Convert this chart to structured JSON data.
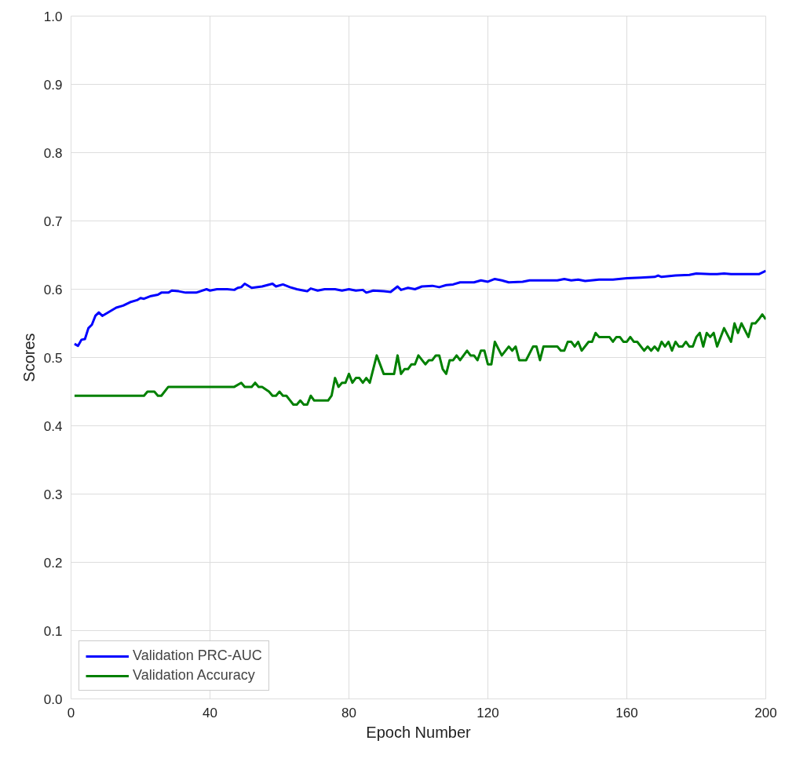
{
  "chart_data": {
    "type": "line",
    "xlabel": "Epoch Number",
    "ylabel": "Scores",
    "xlim": [
      0,
      200
    ],
    "ylim": [
      0,
      1.0
    ],
    "xticks": [
      0,
      40,
      80,
      120,
      160,
      200
    ],
    "yticks": [
      {
        "value": 0,
        "label": "0.0"
      },
      0.1,
      0.2,
      0.3,
      0.4,
      0.5,
      0.6,
      0.7,
      0.8,
      0.9,
      {
        "value": 1,
        "label": "1.0"
      }
    ],
    "grid": true,
    "legend": "bottom left",
    "line_style": "solid",
    "series": [
      {
        "name": "Validation PRC-AUC",
        "color": "#0000ff",
        "x": [
          1,
          2,
          3,
          4,
          5,
          6,
          7,
          8,
          9,
          11,
          13,
          15,
          17,
          19,
          20,
          21,
          23,
          25,
          26,
          28,
          29,
          31,
          33,
          36,
          39,
          40,
          42,
          45,
          47,
          48,
          49,
          50,
          52,
          55,
          58,
          59,
          61,
          63,
          65,
          67,
          68,
          69,
          71,
          73,
          76,
          78,
          80,
          82,
          84,
          85,
          87,
          90,
          92,
          94,
          95,
          97,
          99,
          101,
          104,
          106,
          108,
          110,
          112,
          116,
          118,
          120,
          122,
          124,
          126,
          130,
          132,
          136,
          140,
          142,
          144,
          146,
          148,
          152,
          156,
          160,
          164,
          168,
          169,
          170,
          174,
          178,
          180,
          184,
          186,
          188,
          190,
          192,
          196,
          198,
          200
        ],
        "values": [
          0.52,
          0.517,
          0.526,
          0.527,
          0.543,
          0.548,
          0.561,
          0.566,
          0.561,
          0.567,
          0.573,
          0.576,
          0.581,
          0.584,
          0.587,
          0.586,
          0.59,
          0.592,
          0.595,
          0.595,
          0.598,
          0.597,
          0.595,
          0.595,
          0.6,
          0.598,
          0.6,
          0.6,
          0.599,
          0.602,
          0.603,
          0.608,
          0.602,
          0.604,
          0.608,
          0.604,
          0.607,
          0.603,
          0.6,
          0.598,
          0.597,
          0.601,
          0.598,
          0.6,
          0.6,
          0.598,
          0.6,
          0.598,
          0.599,
          0.595,
          0.598,
          0.597,
          0.596,
          0.604,
          0.599,
          0.602,
          0.6,
          0.604,
          0.605,
          0.603,
          0.606,
          0.607,
          0.61,
          0.61,
          0.613,
          0.611,
          0.615,
          0.613,
          0.61,
          0.611,
          0.613,
          0.613,
          0.613,
          0.615,
          0.613,
          0.614,
          0.612,
          0.614,
          0.614,
          0.616,
          0.617,
          0.618,
          0.62,
          0.618,
          0.62,
          0.621,
          0.623,
          0.622,
          0.622,
          0.623,
          0.622,
          0.622,
          0.622,
          0.622,
          0.627
        ]
      },
      {
        "name": "Validation Accuracy",
        "color": "#008000",
        "x": [
          1,
          21,
          22,
          24,
          25,
          26,
          28,
          47,
          49,
          50,
          52,
          53,
          54,
          55,
          57,
          58,
          59,
          60,
          61,
          62,
          64,
          65,
          66,
          67,
          68,
          69,
          70,
          74,
          75,
          76,
          77,
          78,
          79,
          80,
          81,
          82,
          83,
          84,
          85,
          86,
          88,
          90,
          92,
          93,
          94,
          95,
          96,
          97,
          98,
          99,
          100,
          102,
          103,
          104,
          105,
          106,
          107,
          108,
          109,
          110,
          111,
          112,
          114,
          115,
          116,
          117,
          118,
          119,
          120,
          121,
          122,
          124,
          126,
          127,
          128,
          129,
          131,
          133,
          134,
          135,
          136,
          140,
          141,
          142,
          143,
          144,
          145,
          146,
          147,
          149,
          150,
          151,
          152,
          155,
          156,
          157,
          158,
          159,
          160,
          161,
          162,
          163,
          165,
          166,
          167,
          168,
          169,
          170,
          171,
          172,
          173,
          174,
          175,
          176,
          177,
          178,
          179,
          180,
          181,
          182,
          183,
          184,
          185,
          186,
          188,
          190,
          191,
          192,
          193,
          195,
          196,
          197,
          198,
          199,
          200
        ],
        "values": [
          0.444,
          0.444,
          0.45,
          0.45,
          0.444,
          0.444,
          0.457,
          0.457,
          0.463,
          0.457,
          0.457,
          0.463,
          0.457,
          0.457,
          0.45,
          0.444,
          0.444,
          0.45,
          0.444,
          0.444,
          0.431,
          0.431,
          0.437,
          0.431,
          0.431,
          0.444,
          0.437,
          0.437,
          0.444,
          0.47,
          0.457,
          0.463,
          0.463,
          0.476,
          0.463,
          0.47,
          0.47,
          0.463,
          0.47,
          0.463,
          0.503,
          0.476,
          0.476,
          0.476,
          0.503,
          0.476,
          0.483,
          0.483,
          0.49,
          0.49,
          0.503,
          0.49,
          0.496,
          0.496,
          0.503,
          0.503,
          0.483,
          0.476,
          0.496,
          0.496,
          0.503,
          0.496,
          0.51,
          0.503,
          0.503,
          0.496,
          0.51,
          0.51,
          0.49,
          0.49,
          0.523,
          0.503,
          0.516,
          0.51,
          0.516,
          0.496,
          0.496,
          0.516,
          0.516,
          0.496,
          0.516,
          0.516,
          0.51,
          0.51,
          0.523,
          0.523,
          0.516,
          0.523,
          0.51,
          0.523,
          0.523,
          0.536,
          0.53,
          0.53,
          0.523,
          0.53,
          0.53,
          0.523,
          0.523,
          0.53,
          0.523,
          0.523,
          0.51,
          0.516,
          0.51,
          0.516,
          0.51,
          0.523,
          0.516,
          0.523,
          0.51,
          0.523,
          0.516,
          0.516,
          0.523,
          0.516,
          0.516,
          0.53,
          0.536,
          0.516,
          0.536,
          0.53,
          0.536,
          0.516,
          0.543,
          0.523,
          0.55,
          0.536,
          0.55,
          0.53,
          0.55,
          0.55,
          0.556,
          0.563,
          0.556
        ]
      }
    ]
  }
}
